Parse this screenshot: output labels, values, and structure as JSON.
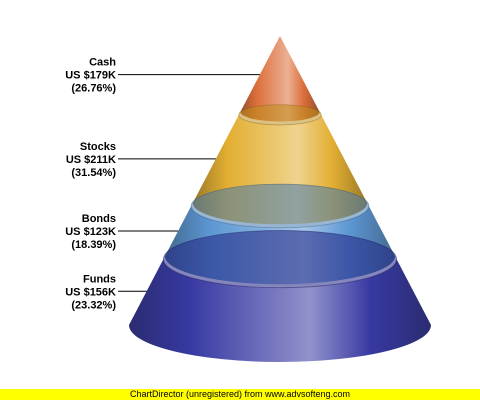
{
  "chart_data": {
    "type": "pyramid-cone",
    "segments": [
      {
        "name": "Cash",
        "value_text": "US $179K",
        "percent_text": "(26.76%)",
        "value_k": 179,
        "percent": 26.76,
        "color": "#d9622a"
      },
      {
        "name": "Stocks",
        "value_text": "US $211K",
        "percent_text": "(31.54%)",
        "value_k": 211,
        "percent": 31.54,
        "color": "#e0a820"
      },
      {
        "name": "Bonds",
        "value_text": "US $123K",
        "percent_text": "(18.39%)",
        "value_k": 123,
        "percent": 18.39,
        "color": "#4f8fd0"
      },
      {
        "name": "Funds",
        "value_text": "US $156K",
        "percent_text": "(23.32%)",
        "value_k": 156,
        "percent": 23.32,
        "color": "#26289a"
      }
    ],
    "legend": "none",
    "label_placement": "left"
  },
  "footer": {
    "text": "ChartDirector (unregistered) from www.advsofteng.com",
    "background": "#ffff00"
  }
}
